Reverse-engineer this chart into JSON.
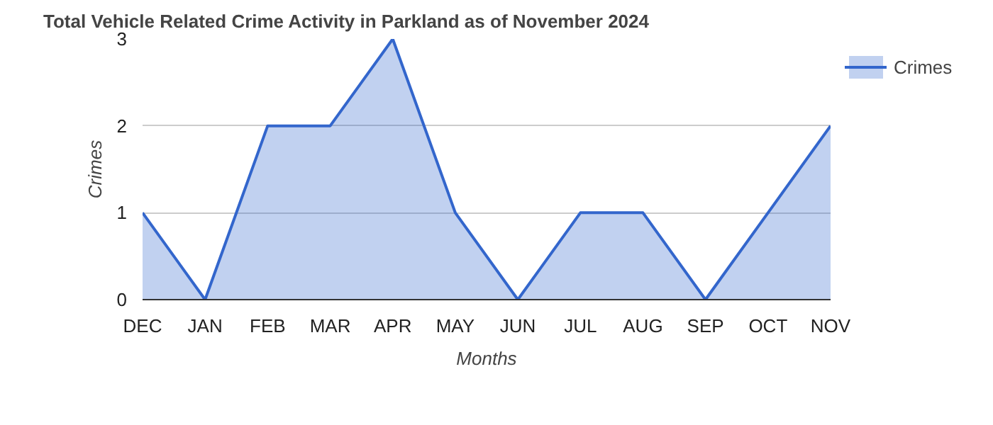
{
  "chart_data": {
    "type": "area",
    "title": "Total Vehicle Related Crime Activity in Parkland as of November 2024",
    "xlabel": "Months",
    "ylabel": "Crimes",
    "categories": [
      "DEC",
      "JAN",
      "FEB",
      "MAR",
      "APR",
      "MAY",
      "JUN",
      "JUL",
      "AUG",
      "SEP",
      "OCT",
      "NOV"
    ],
    "series": [
      {
        "name": "Crimes",
        "color": "#3366cc",
        "values": [
          1,
          0,
          2,
          2,
          3,
          1,
          0,
          1,
          1,
          0,
          1,
          2
        ]
      }
    ],
    "ylim": [
      0,
      3
    ],
    "yticks": [
      0,
      1,
      2,
      3
    ],
    "grid": "y",
    "legend": "top right"
  }
}
